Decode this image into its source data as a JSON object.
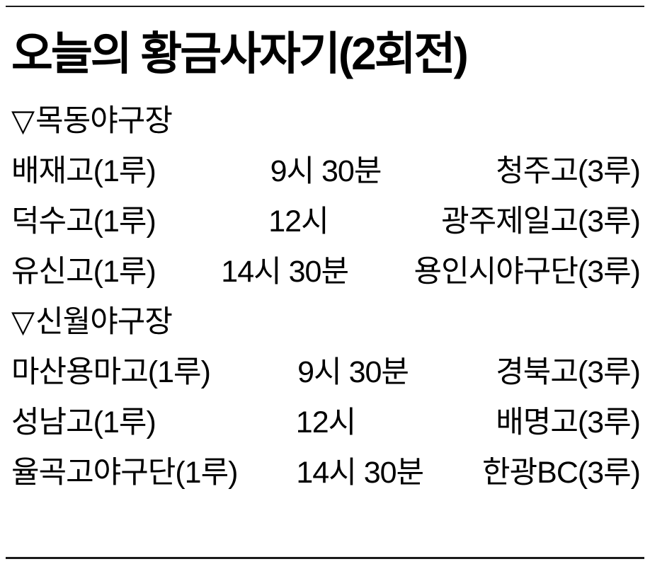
{
  "title": "오늘의 황금사자기(2회전)",
  "sections": [
    {
      "marker": "▽",
      "venue": "목동야구장",
      "games": [
        {
          "first_base": "배재고(1루)",
          "time": "9시 30분",
          "third_base": "청주고(3루)"
        },
        {
          "first_base": "덕수고(1루)",
          "time": "12시",
          "third_base": "광주제일고(3루)"
        },
        {
          "first_base": "유신고(1루)",
          "time": "14시 30분",
          "third_base": "용인시야구단(3루)"
        }
      ]
    },
    {
      "marker": "▽",
      "venue": "신월야구장",
      "games": [
        {
          "first_base": "마산용마고(1루)",
          "time": "9시 30분",
          "third_base": "경북고(3루)"
        },
        {
          "first_base": "성남고(1루)",
          "time": "12시",
          "third_base": "배명고(3루)"
        },
        {
          "first_base": "율곡고야구단(1루)",
          "time": "14시 30분",
          "third_base": "한광BC(3루)"
        }
      ]
    }
  ],
  "colors": {
    "text": "#000000",
    "rule": "#1a1a1a",
    "background": "#ffffff"
  }
}
